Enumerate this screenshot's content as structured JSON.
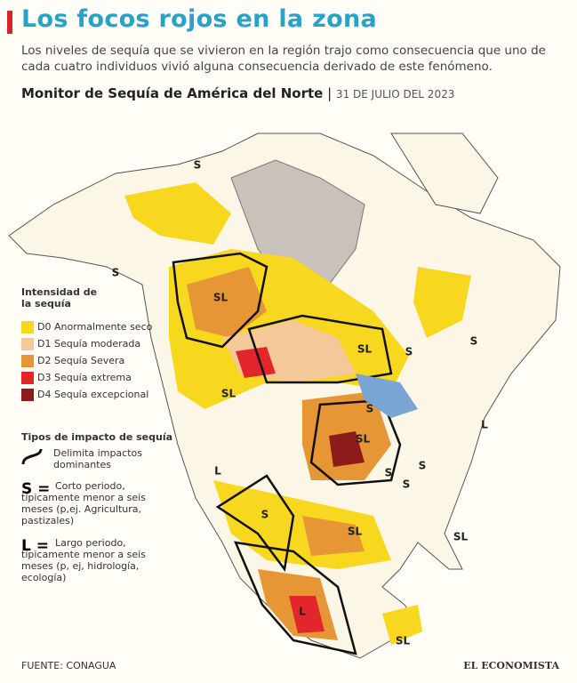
{
  "header": {
    "title": "Los focos rojos en la zona",
    "subtitle": "Los niveles de sequía que se vivieron en la región trajo como consecuencia que uno de cada cuatro individuos vivió alguna consecuencia derivado de este fenómeno.",
    "map_title": "Monitor de Sequía de América del Norte",
    "date": "31 DE JULIO DEL 2023"
  },
  "legend": {
    "title": "Intensidad de la sequía",
    "items": [
      {
        "label": "D0 Anormalmente seco",
        "color": "#f7d81f"
      },
      {
        "label": "D1 Sequía moderada",
        "color": "#f5c89a"
      },
      {
        "label": "D2 Sequía Severa",
        "color": "#e69635"
      },
      {
        "label": "D3 Sequía extrema",
        "color": "#e3262b"
      },
      {
        "label": "D4 Sequía excepcional",
        "color": "#8e1b1b"
      }
    ]
  },
  "impact": {
    "title": "Tipos de impacto de sequía",
    "line_label": "Delimita impactos dominantes",
    "short_key": "S =",
    "short_text": "Corto periodo, típicamente menor a seis meses (p,ej. Agricultura, pastizales)",
    "long_key": "L =",
    "long_text": "Largo periodo, típicamente menor a seis meses (p, ej, hidrología, ecología)"
  },
  "map_labels": [
    "S",
    "S",
    "SL",
    "SL",
    "S",
    "S",
    "SL",
    "S",
    "SL",
    "L",
    "S",
    "S",
    "S",
    "L",
    "S",
    "SL",
    "SL",
    "L",
    "SL"
  ],
  "footer": {
    "source": "FUENTE: CONAGUA",
    "brand": "EL ECONOMISTA"
  }
}
